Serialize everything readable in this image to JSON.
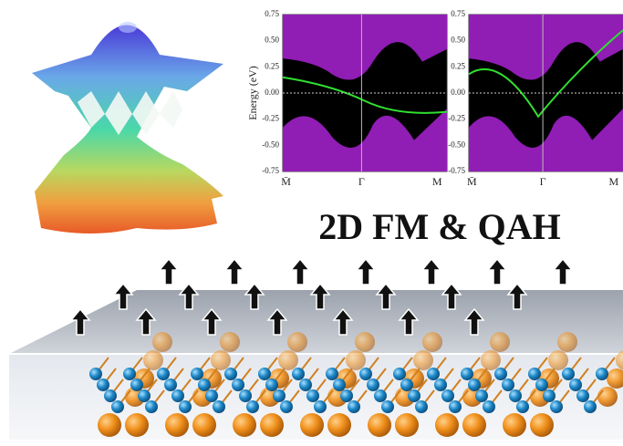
{
  "title": "2D FM & QAH",
  "band_plots": [
    {
      "ylabel": "Energy (eV)",
      "yticks": [
        "0.75",
        "0.50",
        "0.25",
        "0.00",
        "-0.25",
        "-0.50",
        "-0.75"
      ],
      "xlabels": [
        "M̄",
        "Γ",
        "M"
      ]
    },
    {
      "yticks": [
        "0.75",
        "0.50",
        "0.25",
        "0.00",
        "-0.25",
        "-0.50",
        "-0.75"
      ],
      "xlabels": [
        "M̄",
        "Γ",
        "M"
      ]
    }
  ]
}
